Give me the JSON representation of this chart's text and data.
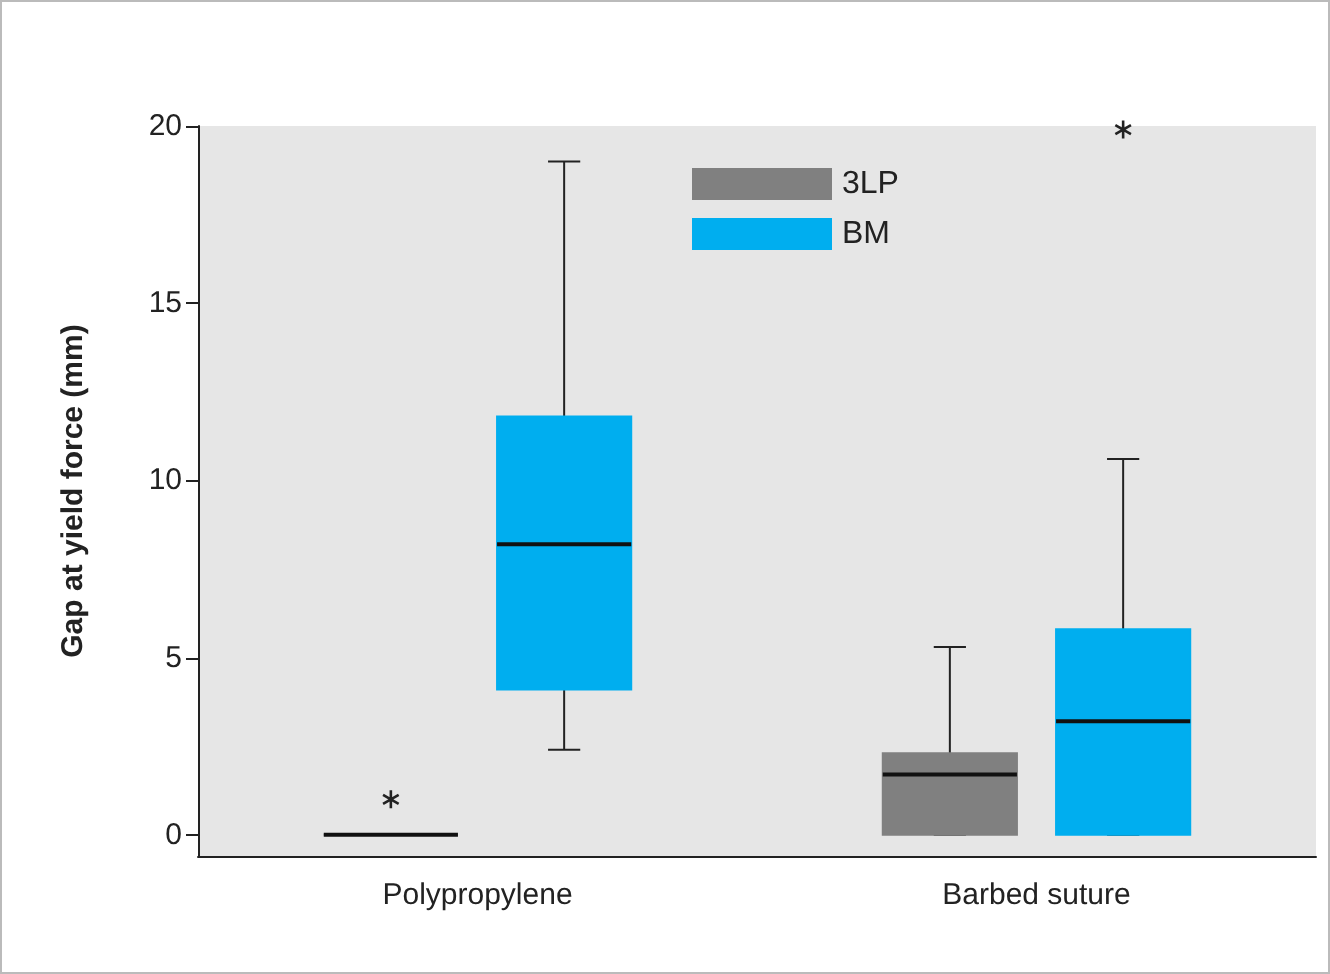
{
  "chart_data": {
    "type": "box",
    "ylabel": "Gap at yield force (mm)",
    "categories": [
      "Polypropylene",
      "Barbed suture"
    ],
    "ylim": [
      -0.6,
      20
    ],
    "yticks": [
      0,
      5,
      10,
      15,
      20
    ],
    "grid": false,
    "legend": "top",
    "series": [
      {
        "name": "3LP",
        "color": "#808080",
        "boxes": [
          {
            "low": 0,
            "q1": 0,
            "median": 0,
            "q3": 0,
            "high": 0,
            "outliers": [
              1
            ]
          },
          {
            "low": 0,
            "q1": 0,
            "median": 1.7,
            "q3": 2.3,
            "high": 5.3
          }
        ]
      },
      {
        "name": "BM",
        "color": "#00aeef",
        "boxes": [
          {
            "low": 2.4,
            "q1": 4.1,
            "median": 8.2,
            "q3": 11.8,
            "high": 19
          },
          {
            "low": 0,
            "q1": 0,
            "median": 3.2,
            "q3": 5.8,
            "high": 10.6,
            "outliers": [
              19.9
            ]
          }
        ]
      }
    ]
  }
}
